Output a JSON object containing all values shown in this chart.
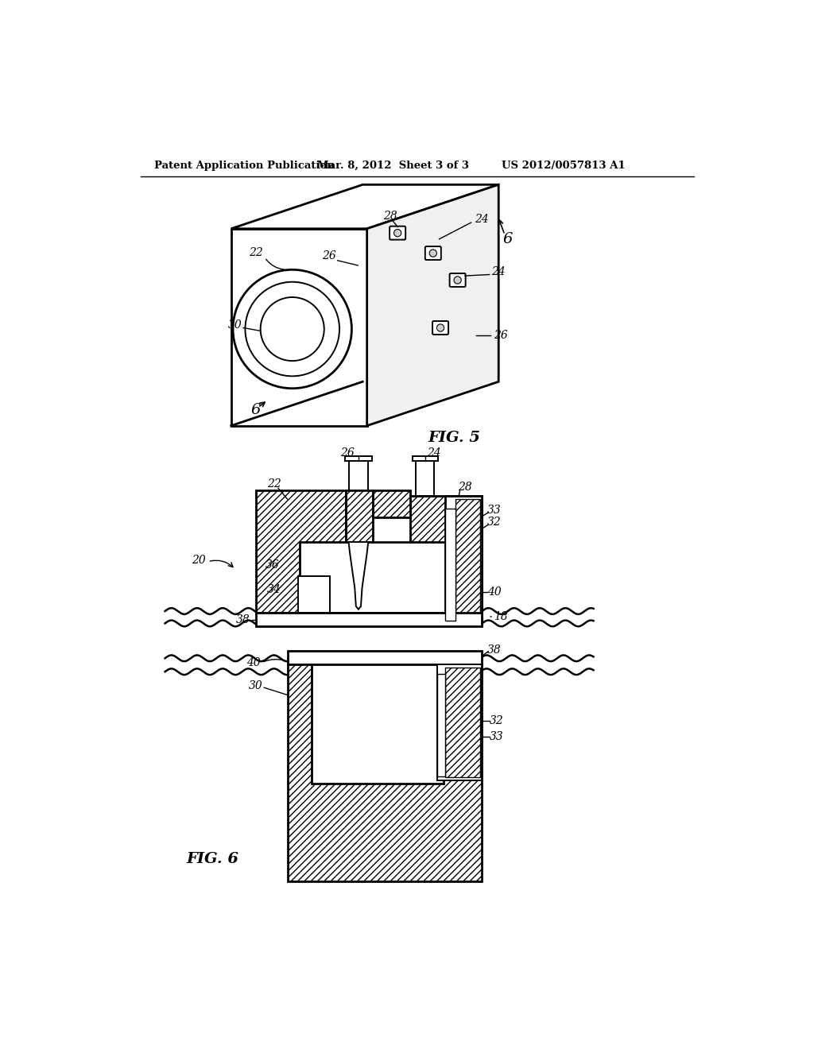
{
  "bg_color": "#ffffff",
  "header_left": "Patent Application Publication",
  "header_mid": "Mar. 8, 2012  Sheet 3 of 3",
  "header_right": "US 2012/0057813 A1",
  "fig5_label": "FIG. 5",
  "fig6_label": "FIG. 6"
}
